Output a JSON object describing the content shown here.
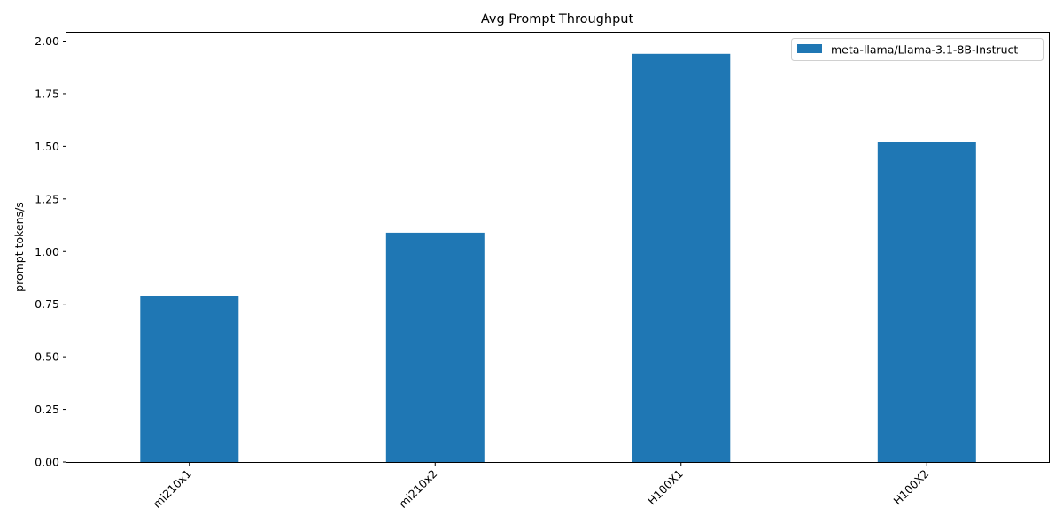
{
  "chart_data": {
    "type": "bar",
    "title": "Avg Prompt Throughput",
    "xlabel": "",
    "ylabel": "prompt tokens/s",
    "categories": [
      "mi210x1",
      "mi210x2",
      "H100X1",
      "H100X2"
    ],
    "series": [
      {
        "name": "meta-llama/Llama-3.1-8B-Instruct",
        "values": [
          0.79,
          1.09,
          1.94,
          1.52
        ],
        "color": "#1f77b4"
      }
    ],
    "ylim": [
      0,
      2.04
    ],
    "yticks": [
      "0.00",
      "0.25",
      "0.50",
      "0.75",
      "1.00",
      "1.25",
      "1.50",
      "1.75",
      "2.00"
    ],
    "ytick_values": [
      0,
      0.25,
      0.5,
      0.75,
      1.0,
      1.25,
      1.5,
      1.75,
      2.0
    ],
    "legend_position": "top-right",
    "grid": false,
    "xtick_rotation": "45deg"
  }
}
